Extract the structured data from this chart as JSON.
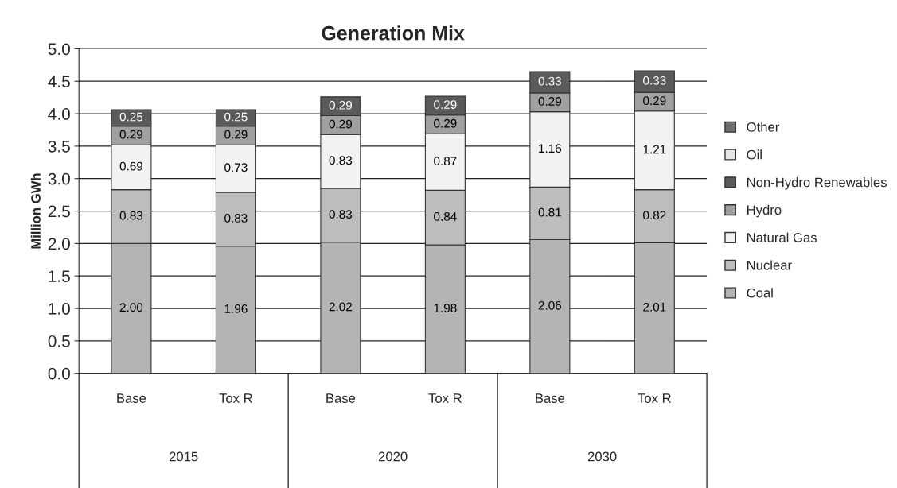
{
  "chart_data": {
    "type": "bar",
    "title": "Generation Mix",
    "ylabel": "Million GWh",
    "stacked": true,
    "categories": [
      "Base",
      "Tox R",
      "Base",
      "Tox R",
      "Base",
      "Tox R"
    ],
    "annotations": [
      "2015",
      "2020",
      "2030"
    ],
    "series": [
      {
        "name": "Coal",
        "color": "#b4b4b4",
        "values": [
          2.0,
          1.96,
          2.02,
          1.98,
          2.06,
          2.01
        ],
        "value_labels": [
          "2.00",
          "1.96",
          "2.02",
          "1.98",
          "2.06",
          "2.01"
        ]
      },
      {
        "name": "Nuclear",
        "color": "#bdbdbd",
        "values": [
          0.83,
          0.83,
          0.83,
          0.84,
          0.81,
          0.82
        ],
        "value_labels": [
          "0.83",
          "0.83",
          "0.83",
          "0.84",
          "0.81",
          "0.82"
        ]
      },
      {
        "name": "Natural Gas",
        "color": "#f2f2f2",
        "values": [
          0.69,
          0.73,
          0.83,
          0.87,
          1.16,
          1.21
        ],
        "value_labels": [
          "0.69",
          "0.73",
          "0.83",
          "0.87",
          "1.16",
          "1.21"
        ]
      },
      {
        "name": "Hydro",
        "color": "#a0a0a0",
        "values": [
          0.29,
          0.29,
          0.29,
          0.29,
          0.29,
          0.29
        ],
        "value_labels": [
          "0.29",
          "0.29",
          "0.29",
          "0.29",
          "0.29",
          "0.29"
        ]
      },
      {
        "name": "Non-Hydro Renewables",
        "color": "#5a5a5a",
        "values": [
          0.25,
          0.25,
          0.29,
          0.29,
          0.33,
          0.33
        ],
        "value_labels": [
          "0.25",
          "0.25",
          "0.29",
          "0.29",
          "0.33",
          "0.33"
        ]
      },
      {
        "name": "Oil",
        "color": "#e6e6e6",
        "values": [
          null,
          null,
          null,
          null,
          null,
          null
        ]
      },
      {
        "name": "Other",
        "color": "#6e6e6e",
        "values": [
          null,
          null,
          null,
          null,
          null,
          null
        ]
      }
    ],
    "ylim": [
      0,
      5
    ],
    "yticks": [
      {
        "value": 0,
        "label": "0.0"
      },
      {
        "value": 0.5,
        "label": "0.5"
      },
      {
        "value": 1,
        "label": "1.0"
      },
      {
        "value": 1.5,
        "label": "1.5"
      },
      {
        "value": 2,
        "label": "2.0"
      },
      {
        "value": 2.5,
        "label": "2.5"
      },
      {
        "value": 3,
        "label": "3.0"
      },
      {
        "value": 3.5,
        "label": "3.5"
      },
      {
        "value": 4,
        "label": "4.0"
      },
      {
        "value": 4.5,
        "label": "4.5"
      },
      {
        "value": 5,
        "label": "5.0"
      }
    ],
    "grid": "y",
    "legend": "right"
  }
}
